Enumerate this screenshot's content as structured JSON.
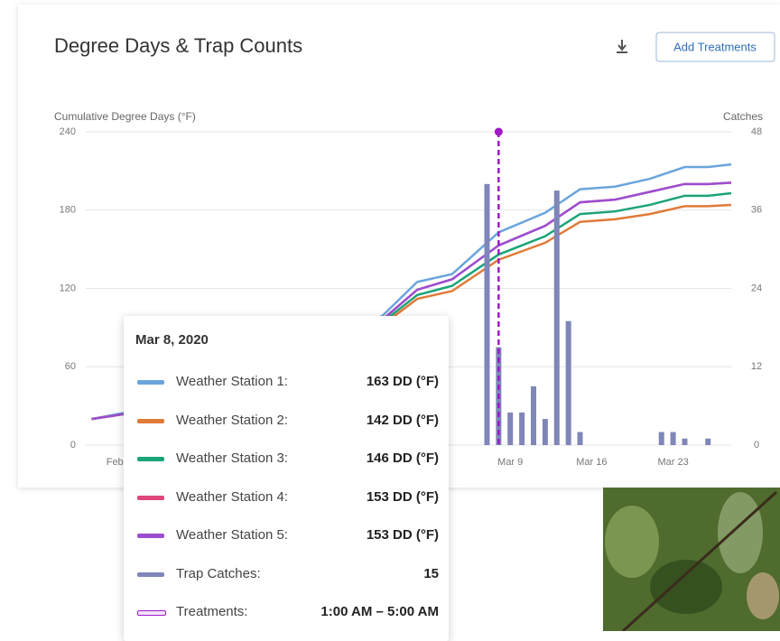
{
  "chart_data": {
    "type": "line",
    "title": "Degree Days & Trap Counts",
    "button": "Add Treatments",
    "y_label": "Cumulative Degree Days (°F)",
    "y2_label": "Catches",
    "grid": true,
    "x": [
      33,
      36,
      39,
      58,
      61,
      64,
      68,
      72,
      75,
      78,
      81,
      84,
      86,
      88
    ],
    "xlim": [
      32.5,
      88
    ],
    "xticks": [
      {
        "value": 35,
        "label": "Feb"
      },
      {
        "value": 69,
        "label": "Mar 9"
      },
      {
        "value": 76,
        "label": "Mar 16"
      },
      {
        "value": 83,
        "label": "Mar 23"
      }
    ],
    "ylim": [
      0,
      240
    ],
    "yticks": [
      0,
      60,
      120,
      180,
      240
    ],
    "y2lim": [
      0,
      48
    ],
    "y2ticks": [
      0,
      12,
      24,
      36,
      48
    ],
    "series": [
      {
        "name": "Weather Station 1:",
        "color": "#6aa5dc",
        "values": [
          20,
          25,
          27,
          99,
          125,
          131,
          163,
          178,
          196,
          198,
          204,
          213,
          213,
          215
        ]
      },
      {
        "name": "Weather Station 2:",
        "color": "#e07b39",
        "values": [
          20,
          24,
          26,
          92,
          112,
          118,
          142,
          155,
          171,
          173,
          177,
          183,
          183,
          184
        ]
      },
      {
        "name": "Weather Station 3:",
        "color": "#1ba37a",
        "values": [
          20,
          24,
          26,
          94,
          115,
          122,
          146,
          160,
          177,
          179,
          184,
          191,
          191,
          193
        ]
      },
      {
        "name": "Weather Station 4:",
        "color": "#e0457b",
        "values": [
          20,
          24,
          26,
          96,
          119,
          127,
          153,
          168,
          186,
          188,
          194,
          200,
          200,
          201
        ]
      },
      {
        "name": "Weather Station 5:",
        "color": "#9b4fd0",
        "values": [
          20,
          24,
          26,
          96,
          119,
          127,
          153,
          168,
          186,
          188,
          194,
          200,
          200,
          201
        ]
      },
      {
        "name": "Trap Catches:",
        "type": "bar",
        "axis": "y2",
        "color": "#7f86b8",
        "x": [
          67,
          68,
          69,
          70,
          71,
          72,
          73,
          74,
          75,
          82,
          83,
          84,
          86
        ],
        "values": [
          40,
          15,
          5,
          5,
          9,
          4,
          39,
          19,
          2,
          2,
          2,
          1,
          1
        ]
      }
    ],
    "treatment": {
      "name": "Treatments:",
      "x": 68,
      "color": "#a018c8",
      "time": "1:00 AM – 5:00 AM"
    },
    "tooltip": {
      "title": "Mar 8, 2020",
      "values": [
        "163 DD (°F)",
        "142 DD (°F)",
        "146 DD (°F)",
        "153 DD (°F)",
        "153 DD (°F)"
      ]
    }
  }
}
